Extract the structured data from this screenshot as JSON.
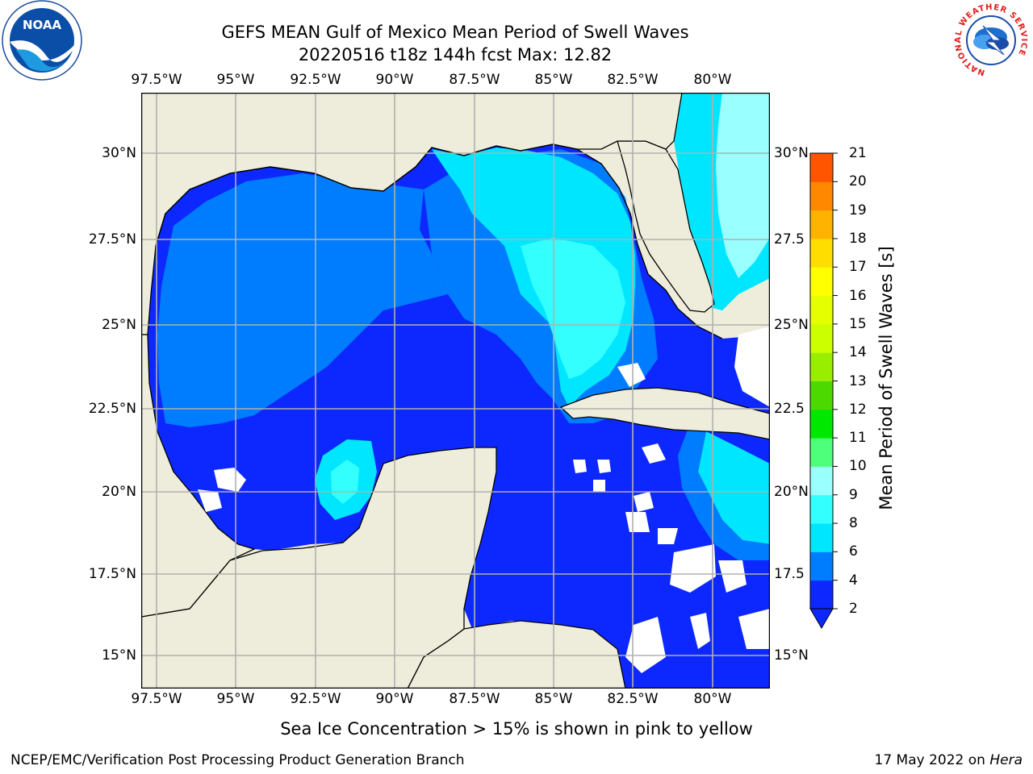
{
  "title": {
    "line1": "GEFS MEAN Gulf of Mexico Mean Period of Swell Waves",
    "line2": "20220516 t18z 144h fcst   Max: 12.82"
  },
  "map": {
    "lon_ticks": [
      "97.5°W",
      "95°W",
      "92.5°W",
      "90°W",
      "87.5°W",
      "85°W",
      "82.5°W",
      "80°W"
    ],
    "lat_ticks_left": [
      "30°N",
      "27.5°N",
      "25°N",
      "22.5°N",
      "20°N",
      "17.5°N",
      "15°N"
    ],
    "lat_ticks_right": [
      "30°N",
      "27.5",
      "25°N",
      "22.5",
      "20°N",
      "17.5",
      "15°N"
    ],
    "land_color": "#eeeddb",
    "grid_color": "#b0b0b0"
  },
  "colorbar": {
    "label": "Mean Period of Swell Waves [s]",
    "ticks": [
      "2",
      "4",
      "6",
      "8",
      "9",
      "10",
      "11",
      "12",
      "13",
      "14",
      "15",
      "16",
      "17",
      "18",
      "19",
      "20",
      "21"
    ],
    "colors": [
      "#0d28ff",
      "#007cff",
      "#00e6ff",
      "#33ffff",
      "#99ffff",
      "#4dff7a",
      "#00e800",
      "#4cd900",
      "#99ee00",
      "#ccff00",
      "#e6ff00",
      "#ffff00",
      "#ffdd00",
      "#ffb300",
      "#ff8800",
      "#ff5500",
      "#ff2a00",
      "#ff0000"
    ],
    "under_color": "#0d28ff"
  },
  "logos": {
    "noaa": "NOAA",
    "nws_ring": "NATIONAL WEATHER SERVICE"
  },
  "footer": {
    "note": "Sea Ice Concentration > 15% is shown in pink to yellow",
    "left": "NCEP/EMC/Verification Post Processing Product Generation Branch",
    "date": "17 May 2022 on ",
    "host": "Hera"
  }
}
